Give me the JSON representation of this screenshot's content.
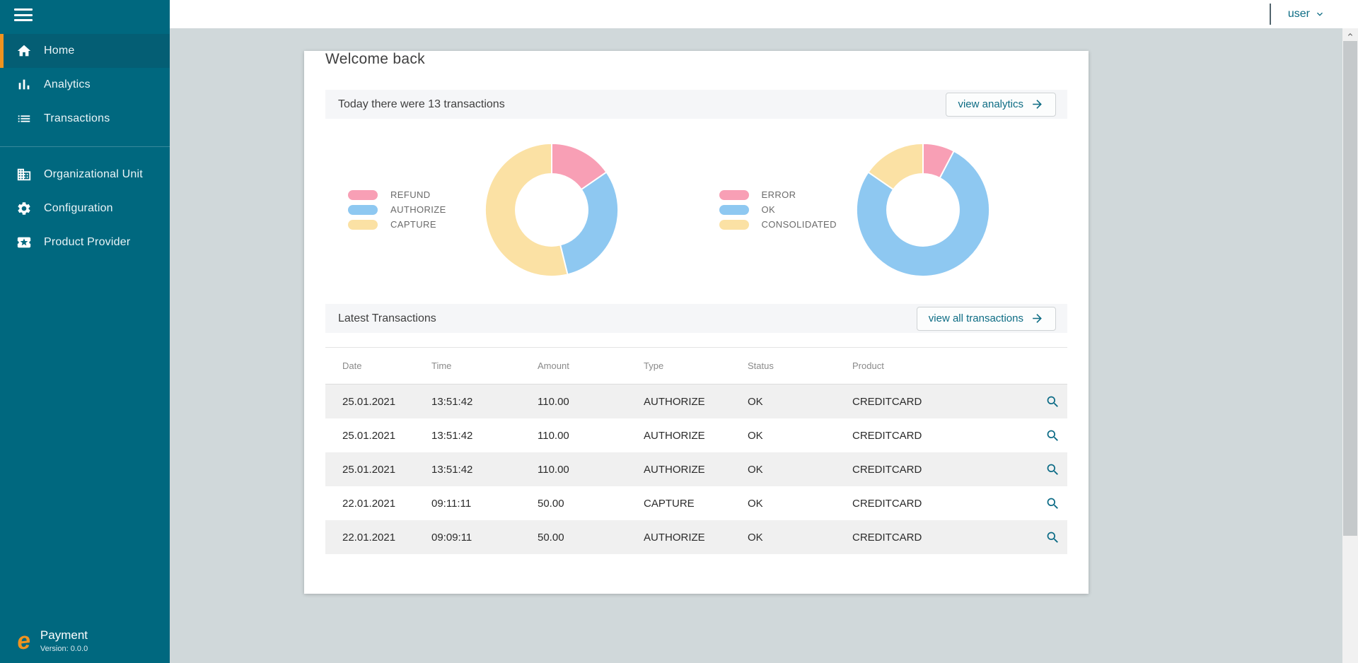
{
  "topbar": {
    "user_label": "user"
  },
  "sidebar": {
    "items": [
      {
        "label": "Home",
        "icon": "home-icon",
        "active": true
      },
      {
        "label": "Analytics",
        "icon": "analytics-icon",
        "active": false
      },
      {
        "label": "Transactions",
        "icon": "transactions-icon",
        "active": false
      },
      {
        "divider": true
      },
      {
        "label": "Organizational Unit",
        "icon": "organizational-unit-icon",
        "active": false
      },
      {
        "label": "Configuration",
        "icon": "configuration-icon",
        "active": false
      },
      {
        "label": "Product Provider",
        "icon": "product-provider-icon",
        "active": false
      }
    ],
    "footer": {
      "app_name": "Payment",
      "version": "Version: 0.0.0"
    }
  },
  "main": {
    "title": "Welcome back",
    "today_banner": {
      "text": "Today there were 13 transactions",
      "button_label": "view analytics"
    },
    "latest_section": {
      "title": "Latest Transactions",
      "button_label": "view all transactions"
    }
  },
  "chart_data": [
    {
      "type": "pie",
      "style": "donut",
      "title": "",
      "categories": [
        "REFUND",
        "AUTHORIZE",
        "CAPTURE"
      ],
      "values": [
        2,
        4,
        7
      ],
      "colors": [
        "#F89FB5",
        "#8EC8F1",
        "#FBE1A4"
      ],
      "legend_position": "left",
      "start_angle_deg": 0,
      "direction": "clockwise"
    },
    {
      "type": "pie",
      "style": "donut",
      "title": "",
      "categories": [
        "ERROR",
        "OK",
        "CONSOLIDATED"
      ],
      "values": [
        1,
        10,
        2
      ],
      "colors": [
        "#F89FB5",
        "#8EC8F1",
        "#FBE1A4"
      ],
      "legend_position": "left",
      "start_angle_deg": 0,
      "direction": "clockwise"
    }
  ],
  "table": {
    "headers": [
      "Date",
      "Time",
      "Amount",
      "Type",
      "Status",
      "Product"
    ],
    "rows": [
      [
        "25.01.2021",
        "13:51:42",
        "110.00",
        "AUTHORIZE",
        "OK",
        "CREDITCARD"
      ],
      [
        "25.01.2021",
        "13:51:42",
        "110.00",
        "AUTHORIZE",
        "OK",
        "CREDITCARD"
      ],
      [
        "25.01.2021",
        "13:51:42",
        "110.00",
        "AUTHORIZE",
        "OK",
        "CREDITCARD"
      ],
      [
        "22.01.2021",
        "09:11:11",
        "50.00",
        "CAPTURE",
        "OK",
        "CREDITCARD"
      ],
      [
        "22.01.2021",
        "09:09:11",
        "50.00",
        "AUTHORIZE",
        "OK",
        "CREDITCARD"
      ]
    ]
  },
  "colors": {
    "sidebar_bg": "#00687F",
    "sidebar_active_bg": "#045E74",
    "accent_orange": "#F0931F",
    "link_teal": "#0D6C84",
    "page_bg": "#D0D8DA",
    "banner_bg": "#F5F6F8",
    "alt_row_bg": "#F0F0F0"
  }
}
